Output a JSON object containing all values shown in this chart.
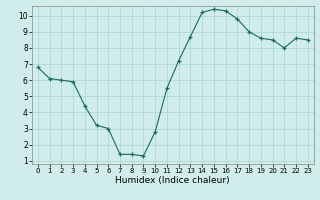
{
  "x": [
    0,
    1,
    2,
    3,
    4,
    5,
    6,
    7,
    8,
    9,
    10,
    11,
    12,
    13,
    14,
    15,
    16,
    17,
    18,
    19,
    20,
    21,
    22,
    23
  ],
  "y": [
    6.8,
    6.1,
    6.0,
    5.9,
    4.4,
    3.2,
    3.0,
    1.4,
    1.4,
    1.3,
    2.8,
    5.5,
    7.2,
    8.7,
    10.2,
    10.4,
    10.3,
    9.8,
    9.0,
    8.6,
    8.5,
    8.0,
    8.6,
    8.5
  ],
  "xlabel": "Humidex (Indice chaleur)",
  "line_color": "#1a6b5a",
  "marker": "+",
  "bg_color": "#d0eceb",
  "grid_color": "#b0d8d4",
  "ylim_min": 0.8,
  "ylim_max": 10.6,
  "xlim_min": -0.5,
  "xlim_max": 23.5,
  "yticks": [
    1,
    2,
    3,
    4,
    5,
    6,
    7,
    8,
    9,
    10
  ],
  "xticks": [
    0,
    1,
    2,
    3,
    4,
    5,
    6,
    7,
    8,
    9,
    10,
    11,
    12,
    13,
    14,
    15,
    16,
    17,
    18,
    19,
    20,
    21,
    22,
    23
  ]
}
